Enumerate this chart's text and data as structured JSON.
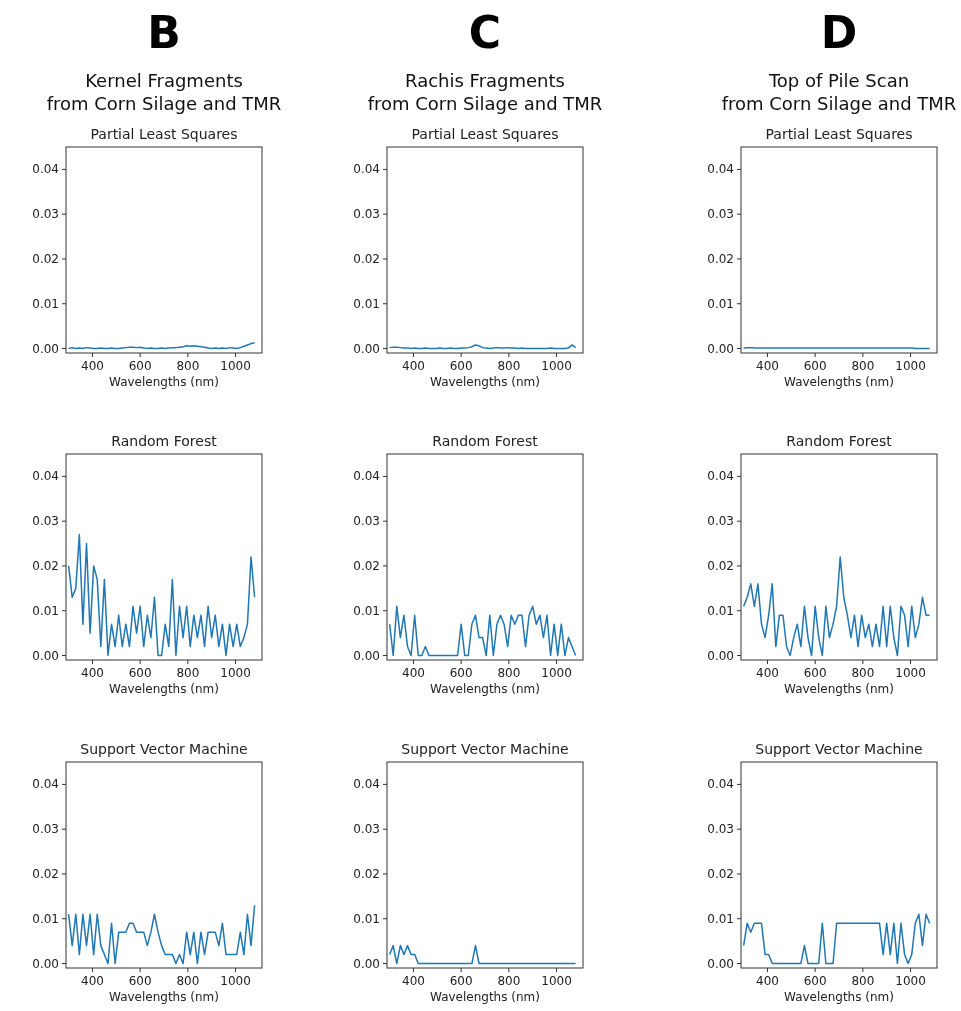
{
  "chart_data": [
    {
      "type": "line",
      "annotations": [
        "B"
      ],
      "title": "Kernel Fragments\nfrom Corn Silage and TMR",
      "subtitle": "Partial Least Squares",
      "xlabel": "Wavelengths (nm)",
      "x": [
        300,
        315,
        330,
        345,
        360,
        375,
        390,
        405,
        420,
        435,
        450,
        465,
        480,
        495,
        510,
        525,
        540,
        555,
        570,
        585,
        600,
        615,
        630,
        645,
        660,
        675,
        690,
        705,
        720,
        735,
        750,
        765,
        780,
        795,
        810,
        825,
        840,
        855,
        870,
        885,
        900,
        915,
        930,
        945,
        960,
        975,
        990,
        1005,
        1020,
        1035,
        1050,
        1065,
        1080
      ],
      "color": "#1f77b4",
      "values": [
        0,
        0.0002,
        0,
        0.0001,
        0,
        0.0002,
        0.0001,
        0,
        0,
        0.0001,
        0,
        0,
        0.0001,
        0,
        0,
        0.0001,
        0.0002,
        0.0003,
        0.0003,
        0.0002,
        0.0003,
        0.0001,
        0,
        0.0001,
        0,
        0,
        0.0001,
        0,
        0.0001,
        0.0002,
        0.0002,
        0.0003,
        0.0004,
        0.0006,
        0.0005,
        0.0006,
        0.0005,
        0.0004,
        0.0003,
        0.0001,
        0,
        0.0001,
        0,
        0.0001,
        0,
        0.0002,
        0.0001,
        0,
        0.0002,
        0.0005,
        0.0008,
        0.0011,
        0.0013
      ],
      "xlim": [
        289,
        1111
      ],
      "ylim": [
        -0.001,
        0.045
      ],
      "xticks": [
        400,
        600,
        800,
        1000
      ],
      "yticks": [
        {
          "value": 0,
          "label": "0.00"
        },
        {
          "value": 0.01,
          "label": "0.01"
        },
        {
          "value": 0.02,
          "label": "0.02"
        },
        {
          "value": 0.03,
          "label": "0.03"
        },
        {
          "value": 0.04,
          "label": "0.04"
        }
      ]
    },
    {
      "type": "line",
      "annotations": [
        "C"
      ],
      "title": "Rachis Fragments\nfrom Corn Silage and TMR",
      "subtitle": "Partial Least Squares",
      "xlabel": "Wavelengths (nm)",
      "x": [
        300,
        315,
        330,
        345,
        360,
        375,
        390,
        405,
        420,
        435,
        450,
        465,
        480,
        495,
        510,
        525,
        540,
        555,
        570,
        585,
        600,
        615,
        630,
        645,
        660,
        675,
        690,
        705,
        720,
        735,
        750,
        765,
        780,
        795,
        810,
        825,
        840,
        855,
        870,
        885,
        900,
        915,
        930,
        945,
        960,
        975,
        990,
        1005,
        1020,
        1035,
        1050,
        1065,
        1080
      ],
      "color": "#1f77b4",
      "values": [
        0.0002,
        0.0003,
        0.0003,
        0.0002,
        0.0001,
        0.0001,
        0,
        0.0001,
        0,
        0,
        0.0001,
        0,
        0,
        0,
        0.0001,
        0,
        0,
        0.0001,
        0,
        0,
        0.0001,
        0.0001,
        0.0002,
        0.0004,
        0.0008,
        0.0006,
        0.0002,
        0.0001,
        0,
        0.0001,
        0.0002,
        0.0001,
        0.0001,
        0.0002,
        0.0001,
        0.0001,
        0,
        0.0001,
        0,
        0,
        0,
        0,
        0,
        0,
        0,
        0.0001,
        0,
        0,
        0,
        0,
        0.0001,
        0.0008,
        0.0002
      ],
      "xlim": [
        289,
        1111
      ],
      "ylim": [
        -0.001,
        0.045
      ],
      "xticks": [
        400,
        600,
        800,
        1000
      ],
      "yticks": [
        {
          "value": 0,
          "label": "0.00"
        },
        {
          "value": 0.01,
          "label": "0.01"
        },
        {
          "value": 0.02,
          "label": "0.02"
        },
        {
          "value": 0.03,
          "label": "0.03"
        },
        {
          "value": 0.04,
          "label": "0.04"
        }
      ]
    },
    {
      "type": "line",
      "annotations": [
        "D"
      ],
      "title": "Top of Pile Scan\nfrom Corn Silage and TMR",
      "subtitle": "Partial Least Squares",
      "xlabel": "Wavelengths (nm)",
      "x": [
        300,
        315,
        330,
        345,
        360,
        375,
        390,
        405,
        420,
        435,
        450,
        465,
        480,
        495,
        510,
        525,
        540,
        555,
        570,
        585,
        600,
        615,
        630,
        645,
        660,
        675,
        690,
        705,
        720,
        735,
        750,
        765,
        780,
        795,
        810,
        825,
        840,
        855,
        870,
        885,
        900,
        915,
        930,
        945,
        960,
        975,
        990,
        1005,
        1020,
        1035,
        1050,
        1065,
        1080
      ],
      "color": "#1f77b4",
      "values": [
        0.0001,
        0.0002,
        0.0002,
        0.0001,
        0.0001,
        0.0001,
        0.0001,
        0.0001,
        0.0001,
        0.0001,
        0.0001,
        0.0001,
        0.0001,
        0.0001,
        0.0001,
        0.0001,
        0.0001,
        0.0001,
        0.0001,
        0.0001,
        0.0001,
        0.0001,
        0.0001,
        0.0001,
        0.0001,
        0.0001,
        0.0001,
        0.0001,
        0.0001,
        0.0001,
        0.0001,
        0.0001,
        0.0001,
        0.0001,
        0.0001,
        0.0001,
        0.0001,
        0.0001,
        0.0001,
        0.0001,
        0.0001,
        0.0001,
        0.0001,
        0.0001,
        0.0001,
        0.0001,
        0.0001,
        0.0001,
        0,
        0,
        0,
        0,
        0
      ],
      "xlim": [
        289,
        1111
      ],
      "ylim": [
        -0.001,
        0.045
      ],
      "xticks": [
        400,
        600,
        800,
        1000
      ],
      "yticks": [
        {
          "value": 0,
          "label": "0.00"
        },
        {
          "value": 0.01,
          "label": "0.01"
        },
        {
          "value": 0.02,
          "label": "0.02"
        },
        {
          "value": 0.03,
          "label": "0.03"
        },
        {
          "value": 0.04,
          "label": "0.04"
        }
      ]
    },
    {
      "type": "line",
      "title": "Random Forest",
      "xlabel": "Wavelengths (nm)",
      "x": [
        300,
        315,
        330,
        345,
        360,
        375,
        390,
        405,
        420,
        435,
        450,
        465,
        480,
        495,
        510,
        525,
        540,
        555,
        570,
        585,
        600,
        615,
        630,
        645,
        660,
        675,
        690,
        705,
        720,
        735,
        750,
        765,
        780,
        795,
        810,
        825,
        840,
        855,
        870,
        885,
        900,
        915,
        930,
        945,
        960,
        975,
        990,
        1005,
        1020,
        1035,
        1050,
        1065,
        1080
      ],
      "color": "#1f77b4",
      "values": [
        0.02,
        0.013,
        0.015,
        0.027,
        0.007,
        0.025,
        0.005,
        0.02,
        0.017,
        0.002,
        0.017,
        0,
        0.007,
        0.002,
        0.009,
        0.002,
        0.007,
        0.002,
        0.011,
        0.005,
        0.011,
        0.002,
        0.009,
        0.004,
        0.013,
        0,
        0,
        0.007,
        0.002,
        0.017,
        0,
        0.011,
        0.004,
        0.011,
        0.002,
        0.009,
        0.004,
        0.009,
        0.002,
        0.011,
        0.004,
        0.009,
        0.002,
        0.007,
        0,
        0.007,
        0.002,
        0.007,
        0.002,
        0.004,
        0.007,
        0.022,
        0.013
      ],
      "xlim": [
        289,
        1111
      ],
      "ylim": [
        -0.001,
        0.045
      ],
      "xticks": [
        400,
        600,
        800,
        1000
      ],
      "yticks": [
        {
          "value": 0,
          "label": "0.00"
        },
        {
          "value": 0.01,
          "label": "0.01"
        },
        {
          "value": 0.02,
          "label": "0.02"
        },
        {
          "value": 0.03,
          "label": "0.03"
        },
        {
          "value": 0.04,
          "label": "0.04"
        }
      ]
    },
    {
      "type": "line",
      "title": "Random Forest",
      "xlabel": "Wavelengths (nm)",
      "x": [
        300,
        315,
        330,
        345,
        360,
        375,
        390,
        405,
        420,
        435,
        450,
        465,
        480,
        495,
        510,
        525,
        540,
        555,
        570,
        585,
        600,
        615,
        630,
        645,
        660,
        675,
        690,
        705,
        720,
        735,
        750,
        765,
        780,
        795,
        810,
        825,
        840,
        855,
        870,
        885,
        900,
        915,
        930,
        945,
        960,
        975,
        990,
        1005,
        1020,
        1035,
        1050,
        1065,
        1080
      ],
      "color": "#1f77b4",
      "values": [
        0.007,
        0,
        0.011,
        0.004,
        0.009,
        0.002,
        0,
        0.009,
        0,
        0,
        0.002,
        0,
        0,
        0,
        0,
        0,
        0,
        0,
        0,
        0,
        0.007,
        0,
        0,
        0.007,
        0.009,
        0.004,
        0.004,
        0,
        0.009,
        0,
        0.007,
        0.009,
        0.007,
        0.002,
        0.009,
        0.007,
        0.009,
        0.009,
        0.002,
        0.009,
        0.011,
        0.007,
        0.009,
        0.004,
        0.009,
        0,
        0.007,
        0,
        0.007,
        0,
        0.004,
        0.002,
        0
      ],
      "xlim": [
        289,
        1111
      ],
      "ylim": [
        -0.001,
        0.045
      ],
      "xticks": [
        400,
        600,
        800,
        1000
      ],
      "yticks": [
        {
          "value": 0,
          "label": "0.00"
        },
        {
          "value": 0.01,
          "label": "0.01"
        },
        {
          "value": 0.02,
          "label": "0.02"
        },
        {
          "value": 0.03,
          "label": "0.03"
        },
        {
          "value": 0.04,
          "label": "0.04"
        }
      ]
    },
    {
      "type": "line",
      "title": "Random Forest",
      "xlabel": "Wavelengths (nm)",
      "x": [
        300,
        315,
        330,
        345,
        360,
        375,
        390,
        405,
        420,
        435,
        450,
        465,
        480,
        495,
        510,
        525,
        540,
        555,
        570,
        585,
        600,
        615,
        630,
        645,
        660,
        675,
        690,
        705,
        720,
        735,
        750,
        765,
        780,
        795,
        810,
        825,
        840,
        855,
        870,
        885,
        900,
        915,
        930,
        945,
        960,
        975,
        990,
        1005,
        1020,
        1035,
        1050,
        1065,
        1080
      ],
      "color": "#1f77b4",
      "values": [
        0.011,
        0.013,
        0.016,
        0.011,
        0.016,
        0.007,
        0.004,
        0.009,
        0.016,
        0.002,
        0.009,
        0.009,
        0.002,
        0,
        0.004,
        0.007,
        0.002,
        0.011,
        0.004,
        0,
        0.011,
        0.004,
        0,
        0.011,
        0.004,
        0.007,
        0.011,
        0.022,
        0.013,
        0.009,
        0.004,
        0.009,
        0.002,
        0.009,
        0.004,
        0.007,
        0.002,
        0.007,
        0.002,
        0.011,
        0.002,
        0.011,
        0.004,
        0,
        0.011,
        0.009,
        0.002,
        0.011,
        0.004,
        0.007,
        0.013,
        0.009,
        0.009
      ],
      "xlim": [
        289,
        1111
      ],
      "ylim": [
        -0.001,
        0.045
      ],
      "xticks": [
        400,
        600,
        800,
        1000
      ],
      "yticks": [
        {
          "value": 0,
          "label": "0.00"
        },
        {
          "value": 0.01,
          "label": "0.01"
        },
        {
          "value": 0.02,
          "label": "0.02"
        },
        {
          "value": 0.03,
          "label": "0.03"
        },
        {
          "value": 0.04,
          "label": "0.04"
        }
      ]
    },
    {
      "type": "line",
      "title": "Support Vector Machine",
      "xlabel": "Wavelengths (nm)",
      "x": [
        300,
        315,
        330,
        345,
        360,
        375,
        390,
        405,
        420,
        435,
        450,
        465,
        480,
        495,
        510,
        525,
        540,
        555,
        570,
        585,
        600,
        615,
        630,
        645,
        660,
        675,
        690,
        705,
        720,
        735,
        750,
        765,
        780,
        795,
        810,
        825,
        840,
        855,
        870,
        885,
        900,
        915,
        930,
        945,
        960,
        975,
        990,
        1005,
        1020,
        1035,
        1050,
        1065,
        1080
      ],
      "color": "#1f77b4",
      "values": [
        0.011,
        0.004,
        0.011,
        0.002,
        0.011,
        0.004,
        0.011,
        0.002,
        0.011,
        0.004,
        0.002,
        0,
        0.009,
        0,
        0.007,
        0.007,
        0.007,
        0.009,
        0.009,
        0.007,
        0.007,
        0.007,
        0.004,
        0.007,
        0.011,
        0.007,
        0.004,
        0.002,
        0.002,
        0.002,
        0,
        0.002,
        0,
        0.007,
        0.002,
        0.007,
        0,
        0.007,
        0.002,
        0.007,
        0.007,
        0.007,
        0.004,
        0.009,
        0.002,
        0.002,
        0.002,
        0.002,
        0.007,
        0.002,
        0.011,
        0.004,
        0.013
      ],
      "xlim": [
        289,
        1111
      ],
      "ylim": [
        -0.001,
        0.045
      ],
      "xticks": [
        400,
        600,
        800,
        1000
      ],
      "yticks": [
        {
          "value": 0,
          "label": "0.00"
        },
        {
          "value": 0.01,
          "label": "0.01"
        },
        {
          "value": 0.02,
          "label": "0.02"
        },
        {
          "value": 0.03,
          "label": "0.03"
        },
        {
          "value": 0.04,
          "label": "0.04"
        }
      ]
    },
    {
      "type": "line",
      "title": "Support Vector Machine",
      "xlabel": "Wavelengths (nm)",
      "x": [
        300,
        315,
        330,
        345,
        360,
        375,
        390,
        405,
        420,
        435,
        450,
        465,
        480,
        495,
        510,
        525,
        540,
        555,
        570,
        585,
        600,
        615,
        630,
        645,
        660,
        675,
        690,
        705,
        720,
        735,
        750,
        765,
        780,
        795,
        810,
        825,
        840,
        855,
        870,
        885,
        900,
        915,
        930,
        945,
        960,
        975,
        990,
        1005,
        1020,
        1035,
        1050,
        1065,
        1080
      ],
      "color": "#1f77b4",
      "values": [
        0.002,
        0.004,
        0,
        0.004,
        0.002,
        0.004,
        0.002,
        0.002,
        0,
        0,
        0,
        0,
        0,
        0,
        0,
        0,
        0,
        0,
        0,
        0,
        0,
        0,
        0,
        0,
        0.004,
        0,
        0,
        0,
        0,
        0,
        0,
        0,
        0,
        0,
        0,
        0,
        0,
        0,
        0,
        0,
        0,
        0,
        0,
        0,
        0,
        0,
        0,
        0,
        0,
        0,
        0,
        0,
        0
      ],
      "xlim": [
        289,
        1111
      ],
      "ylim": [
        -0.001,
        0.045
      ],
      "xticks": [
        400,
        600,
        800,
        1000
      ],
      "yticks": [
        {
          "value": 0,
          "label": "0.00"
        },
        {
          "value": 0.01,
          "label": "0.01"
        },
        {
          "value": 0.02,
          "label": "0.02"
        },
        {
          "value": 0.03,
          "label": "0.03"
        },
        {
          "value": 0.04,
          "label": "0.04"
        }
      ]
    },
    {
      "type": "line",
      "title": "Support Vector Machine",
      "xlabel": "Wavelengths (nm)",
      "x": [
        300,
        315,
        330,
        345,
        360,
        375,
        390,
        405,
        420,
        435,
        450,
        465,
        480,
        495,
        510,
        525,
        540,
        555,
        570,
        585,
        600,
        615,
        630,
        645,
        660,
        675,
        690,
        705,
        720,
        735,
        750,
        765,
        780,
        795,
        810,
        825,
        840,
        855,
        870,
        885,
        900,
        915,
        930,
        945,
        960,
        975,
        990,
        1005,
        1020,
        1035,
        1050,
        1065,
        1080
      ],
      "color": "#1f77b4",
      "values": [
        0.004,
        0.009,
        0.007,
        0.009,
        0.009,
        0.009,
        0.002,
        0.002,
        0,
        0,
        0,
        0,
        0,
        0,
        0,
        0,
        0,
        0.004,
        0,
        0,
        0,
        0,
        0.009,
        0,
        0,
        0,
        0.009,
        0.009,
        0.009,
        0.009,
        0.009,
        0.009,
        0.009,
        0.009,
        0.009,
        0.009,
        0.009,
        0.009,
        0.009,
        0.002,
        0.009,
        0.002,
        0.009,
        0,
        0.009,
        0.002,
        0,
        0.002,
        0.009,
        0.011,
        0.004,
        0.011,
        0.009
      ],
      "xlim": [
        289,
        1111
      ],
      "ylim": [
        -0.001,
        0.045
      ],
      "xticks": [
        400,
        600,
        800,
        1000
      ],
      "yticks": [
        {
          "value": 0,
          "label": "0.00"
        },
        {
          "value": 0.01,
          "label": "0.01"
        },
        {
          "value": 0.02,
          "label": "0.02"
        },
        {
          "value": 0.03,
          "label": "0.03"
        },
        {
          "value": 0.04,
          "label": "0.04"
        }
      ]
    }
  ]
}
